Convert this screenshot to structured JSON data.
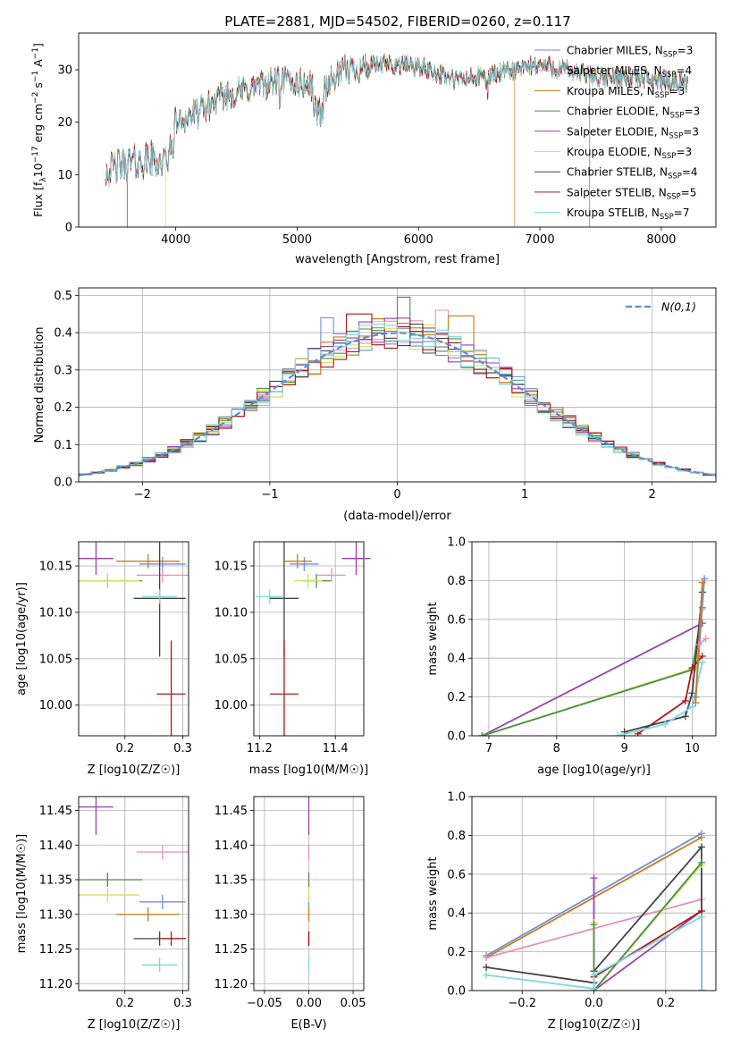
{
  "figure": {
    "title": "PLATE=2881, MJD=54502, FIBERID=0260, z=0.117"
  },
  "colors": {
    "Chabrier MILES": "#6f8fd8",
    "Salpeter MILES": "#e58fbf",
    "Kroupa MILES": "#c97a1a",
    "Chabrier ELODIE": "#4a8f4a",
    "Salpeter ELODIE": "#9a3fb0",
    "Kroupa ELODIE": "#c9e65a",
    "Chabrier STELIB": "#444444",
    "Salpeter STELIB": "#b01818",
    "Kroupa STELIB": "#7fd6e0"
  },
  "chart_data": [
    {
      "id": "spectrum",
      "type": "line",
      "xlabel": "wavelength [Angstrom, rest frame]",
      "ylabel": "Flux [f_λ 10^-17 erg cm^-2 s^-1 A^-1]",
      "ylabel_parts": {
        "pre": "Flux [f",
        "sub1": "λ",
        "mid": "10",
        "sup1": "−17",
        "post": " erg cm",
        "sup2": "−2",
        "mid2": " s",
        "sup3": "−1",
        "end": " A",
        "sup4": "−1",
        "close": "]"
      },
      "xlim": [
        3200,
        8450
      ],
      "ylim": [
        0,
        37
      ],
      "xticks": [
        4000,
        5000,
        6000,
        7000,
        8000
      ],
      "yticks": [
        0,
        10,
        20,
        30
      ],
      "legend_position": "top-right",
      "legend": [
        {
          "name": "Chabrier MILES",
          "pre": "Chabrier MILES, N",
          "sub": "SSP",
          "post": "=3"
        },
        {
          "name": "Salpeter MILES",
          "pre": "Salpeter MILES, N",
          "sub": "SSP",
          "post": "=4"
        },
        {
          "name": "Kroupa MILES",
          "pre": "Kroupa MILES, N",
          "sub": "SSP",
          "post": "=3"
        },
        {
          "name": "Chabrier ELODIE",
          "pre": "Chabrier ELODIE, N",
          "sub": "SSP",
          "post": "=3"
        },
        {
          "name": "Salpeter ELODIE",
          "pre": "Salpeter ELODIE, N",
          "sub": "SSP",
          "post": "=3"
        },
        {
          "name": "Kroupa ELODIE",
          "pre": "Kroupa ELODIE, N",
          "sub": "SSP",
          "post": "=3"
        },
        {
          "name": "Chabrier STELIB",
          "pre": "Chabrier STELIB, N",
          "sub": "SSP",
          "post": "=4"
        },
        {
          "name": "Salpeter STELIB",
          "pre": "Salpeter STELIB, N",
          "sub": "SSP",
          "post": "=5"
        },
        {
          "name": "Kroupa STELIB",
          "pre": "Kroupa STELIB, N",
          "sub": "SSP",
          "post": "=7"
        }
      ],
      "continuum_points": [
        [
          3420,
          11
        ],
        [
          3600,
          12
        ],
        [
          3800,
          13
        ],
        [
          3900,
          12
        ],
        [
          3970,
          15
        ],
        [
          4000,
          20
        ],
        [
          4200,
          22
        ],
        [
          4400,
          25
        ],
        [
          4700,
          27
        ],
        [
          4900,
          28
        ],
        [
          5100,
          27
        ],
        [
          5200,
          26
        ],
        [
          5400,
          30
        ],
        [
          5700,
          31
        ],
        [
          5900,
          31
        ],
        [
          6100,
          30
        ],
        [
          6300,
          28
        ],
        [
          6600,
          29
        ],
        [
          6800,
          30
        ],
        [
          7000,
          31
        ],
        [
          7200,
          30
        ],
        [
          7500,
          28.5
        ],
        [
          7800,
          28.5
        ],
        [
          8000,
          28
        ],
        [
          8200,
          27.5
        ]
      ],
      "drops": [
        {
          "series": "Salpeter STELIB",
          "x": 3600
        },
        {
          "series": "Kroupa ELODIE",
          "x": 3920
        },
        {
          "series": "Kroupa MILES",
          "x": 6790
        },
        {
          "series": "Salpeter ELODIE",
          "x": 7410
        }
      ]
    },
    {
      "id": "residuals",
      "type": "histogram",
      "xlabel": "(data-model)/error",
      "ylabel": "Normed distribution",
      "xlim": [
        -2.5,
        2.5
      ],
      "ylim": [
        0,
        0.52
      ],
      "xticks": [
        -2,
        -1,
        0,
        1,
        2
      ],
      "yticks": [
        0.0,
        0.1,
        0.2,
        0.3,
        0.4,
        0.5
      ],
      "grid": true,
      "legend_position": "top-right",
      "legend_label": "N(0,1)",
      "bin_width": 0.1,
      "extra_peaks": [
        [
          0.05,
          0.495
        ],
        [
          -0.55,
          0.44
        ],
        [
          0.5,
          0.445
        ],
        [
          0.35,
          0.46
        ],
        [
          -0.3,
          0.45
        ]
      ]
    },
    {
      "id": "age-vs-Z",
      "type": "errorbar",
      "xlabel": "Z [log10(Z/Z☉)]",
      "ylabel": "age [log10(age/yr)]",
      "xlim": [
        0.12,
        0.31
      ],
      "ylim": [
        9.967,
        10.176
      ],
      "xticks": [
        0.2,
        0.3
      ],
      "yticks": [
        10.0,
        10.05,
        10.1,
        10.15
      ],
      "grid": true
    },
    {
      "id": "age-vs-mass",
      "type": "errorbar",
      "xlabel": "mass [log10(M/M☉)]",
      "ylabel": "",
      "xlim": [
        11.185,
        11.475
      ],
      "ylim": [
        9.967,
        10.176
      ],
      "xticks": [
        11.2,
        11.4
      ],
      "yticks": [
        10.0,
        10.05,
        10.1,
        10.15
      ],
      "grid": true
    },
    {
      "id": "weight-vs-age",
      "type": "line",
      "xlabel": "age [log10(age/yr)]",
      "ylabel": "mass weight",
      "xlim": [
        6.75,
        10.35
      ],
      "ylim": [
        0,
        1.0
      ],
      "xticks": [
        7,
        8,
        9,
        10
      ],
      "yticks": [
        0.0,
        0.2,
        0.4,
        0.6,
        0.8,
        1.0
      ],
      "grid": true
    },
    {
      "id": "mass-vs-Z",
      "type": "errorbar",
      "xlabel": "Z [log10(Z/Z☉)]",
      "ylabel": "mass [log10(M/M☉)]",
      "xlim": [
        0.12,
        0.31
      ],
      "ylim": [
        11.19,
        11.47
      ],
      "xticks": [
        0.2,
        0.3
      ],
      "yticks": [
        11.2,
        11.25,
        11.3,
        11.35,
        11.4,
        11.45
      ],
      "grid": true
    },
    {
      "id": "mass-vs-EBV",
      "type": "errorbar",
      "xlabel": "E(B-V)",
      "ylabel": "",
      "xlim": [
        -0.062,
        0.062
      ],
      "ylim": [
        11.19,
        11.47
      ],
      "xticks": [
        -0.05,
        0.0,
        0.05
      ],
      "yticks": [
        11.2,
        11.25,
        11.3,
        11.35,
        11.4,
        11.45
      ],
      "grid": true
    },
    {
      "id": "weight-vs-Z",
      "type": "line",
      "xlabel": "Z [log10(Z/Z☉)]",
      "ylabel": "mass weight",
      "xlim": [
        -0.34,
        0.34
      ],
      "ylim": [
        0,
        1.0
      ],
      "xticks": [
        -0.2,
        0.0,
        0.2
      ],
      "yticks": [
        0.0,
        0.2,
        0.4,
        0.6,
        0.8,
        1.0
      ],
      "grid": true
    }
  ],
  "fits": [
    {
      "series": "Chabrier MILES",
      "Z": 0.265,
      "Zerr": 0.04,
      "age": 10.152,
      "ageerr": 0.0,
      "mass": 11.318,
      "masserr": 0.0,
      "ebv": 0.0
    },
    {
      "series": "Salpeter MILES",
      "Z": 0.265,
      "Zerr": 0.045,
      "age": 10.14,
      "ageerr": 0.0,
      "mass": 11.39,
      "masserr": 0.0,
      "ebv": 0.0
    },
    {
      "series": "Kroupa MILES",
      "Z": 0.24,
      "Zerr": 0.055,
      "age": 10.155,
      "ageerr": 0.0,
      "mass": 11.3,
      "masserr": 0.0,
      "ebv": 0.0
    },
    {
      "series": "Chabrier ELODIE",
      "Z": 0.17,
      "Zerr": 0.06,
      "age": 10.134,
      "ageerr": 0.0,
      "mass": 11.35,
      "masserr": 0.0,
      "ebv": 0.0
    },
    {
      "series": "Salpeter ELODIE",
      "Z": 0.15,
      "Zerr": 0.03,
      "age": 10.158,
      "ageerr": 0.01,
      "mass": 11.455,
      "masserr": 0.03,
      "ebv": 0.0
    },
    {
      "series": "Kroupa ELODIE",
      "Z": 0.17,
      "Zerr": 0.055,
      "age": 10.134,
      "ageerr": 0.0,
      "mass": 11.328,
      "masserr": 0.0,
      "ebv": 0.0
    },
    {
      "series": "Chabrier STELIB",
      "Z": 0.26,
      "Zerr": 0.045,
      "age": 10.115,
      "ageerr": 0.055,
      "mass": 11.265,
      "masserr": 0.0,
      "ebv": 0.0
    },
    {
      "series": "Salpeter STELIB",
      "Z": 0.28,
      "Zerr": 0.025,
      "age": 10.012,
      "ageerr": 0.05,
      "mass": 11.265,
      "masserr": 0.0,
      "ebv": 0.0
    },
    {
      "series": "Kroupa STELIB",
      "Z": 0.26,
      "Zerr": 0.03,
      "age": 10.117,
      "ageerr": 0.0,
      "mass": 11.227,
      "masserr": 0.0,
      "ebv": 0.0
    }
  ],
  "weights_by_age": [
    {
      "series": "Salpeter ELODIE",
      "points": [
        [
          6.9,
          0.0
        ],
        [
          10.15,
          0.58
        ]
      ]
    },
    {
      "series": "Kroupa ELODIE",
      "points": [
        [
          6.9,
          0.0
        ],
        [
          10.05,
          0.35
        ],
        [
          10.15,
          0.65
        ]
      ]
    },
    {
      "series": "Chabrier ELODIE",
      "points": [
        [
          6.9,
          0.0
        ],
        [
          10.0,
          0.34
        ],
        [
          10.15,
          0.66
        ]
      ]
    },
    {
      "series": "Salpeter STELIB",
      "points": [
        [
          9.2,
          0.01
        ],
        [
          9.9,
          0.18
        ],
        [
          10.0,
          0.35
        ],
        [
          10.15,
          0.41
        ]
      ]
    },
    {
      "series": "Chabrier STELIB",
      "points": [
        [
          9.0,
          0.02
        ],
        [
          9.9,
          0.1
        ],
        [
          10.0,
          0.22
        ],
        [
          10.15,
          0.74
        ]
      ]
    },
    {
      "series": "Kroupa STELIB",
      "points": [
        [
          8.9,
          0.0
        ],
        [
          9.6,
          0.06
        ],
        [
          10.0,
          0.15
        ],
        [
          10.15,
          0.38
        ]
      ]
    },
    {
      "series": "Chabrier MILES",
      "points": [
        [
          10.05,
          0.2
        ],
        [
          10.18,
          0.81
        ]
      ]
    },
    {
      "series": "Kroupa MILES",
      "points": [
        [
          10.05,
          0.17
        ],
        [
          10.15,
          0.79
        ]
      ]
    },
    {
      "series": "Salpeter MILES",
      "points": [
        [
          10.1,
          0.47
        ],
        [
          10.2,
          0.5
        ]
      ]
    }
  ],
  "weights_by_Z": [
    {
      "series": "Chabrier MILES",
      "points": [
        [
          -0.3,
          0.18
        ],
        [
          0.3,
          0.81
        ]
      ]
    },
    {
      "series": "Kroupa MILES",
      "points": [
        [
          -0.3,
          0.17
        ],
        [
          0.3,
          0.79
        ]
      ]
    },
    {
      "series": "Salpeter MILES",
      "points": [
        [
          -0.3,
          0.17
        ],
        [
          0.3,
          0.47
        ]
      ]
    },
    {
      "series": "Chabrier STELIB",
      "points": [
        [
          -0.3,
          0.12
        ],
        [
          0.0,
          0.04
        ],
        [
          0.0,
          0.1
        ],
        [
          0.3,
          0.74
        ],
        [
          0.3,
          0.0
        ]
      ]
    },
    {
      "series": "Salpeter ELODIE",
      "points": [
        [
          0.0,
          0.58
        ],
        [
          0.0,
          0.0
        ],
        [
          0.3,
          0.41
        ]
      ]
    },
    {
      "series": "Kroupa ELODIE",
      "points": [
        [
          0.0,
          0.35
        ],
        [
          0.0,
          0.0
        ],
        [
          0.3,
          0.65
        ]
      ]
    },
    {
      "series": "Chabrier ELODIE",
      "points": [
        [
          0.0,
          0.34
        ],
        [
          0.0,
          0.0
        ],
        [
          0.3,
          0.66
        ]
      ]
    },
    {
      "series": "Salpeter STELIB",
      "points": [
        [
          0.0,
          0.07
        ],
        [
          0.3,
          0.41
        ],
        [
          0.3,
          0.0
        ]
      ]
    },
    {
      "series": "Kroupa STELIB",
      "points": [
        [
          -0.3,
          0.08
        ],
        [
          0.0,
          0.01
        ],
        [
          0.0,
          0.08
        ],
        [
          0.3,
          0.38
        ],
        [
          0.3,
          0.0
        ]
      ]
    }
  ]
}
